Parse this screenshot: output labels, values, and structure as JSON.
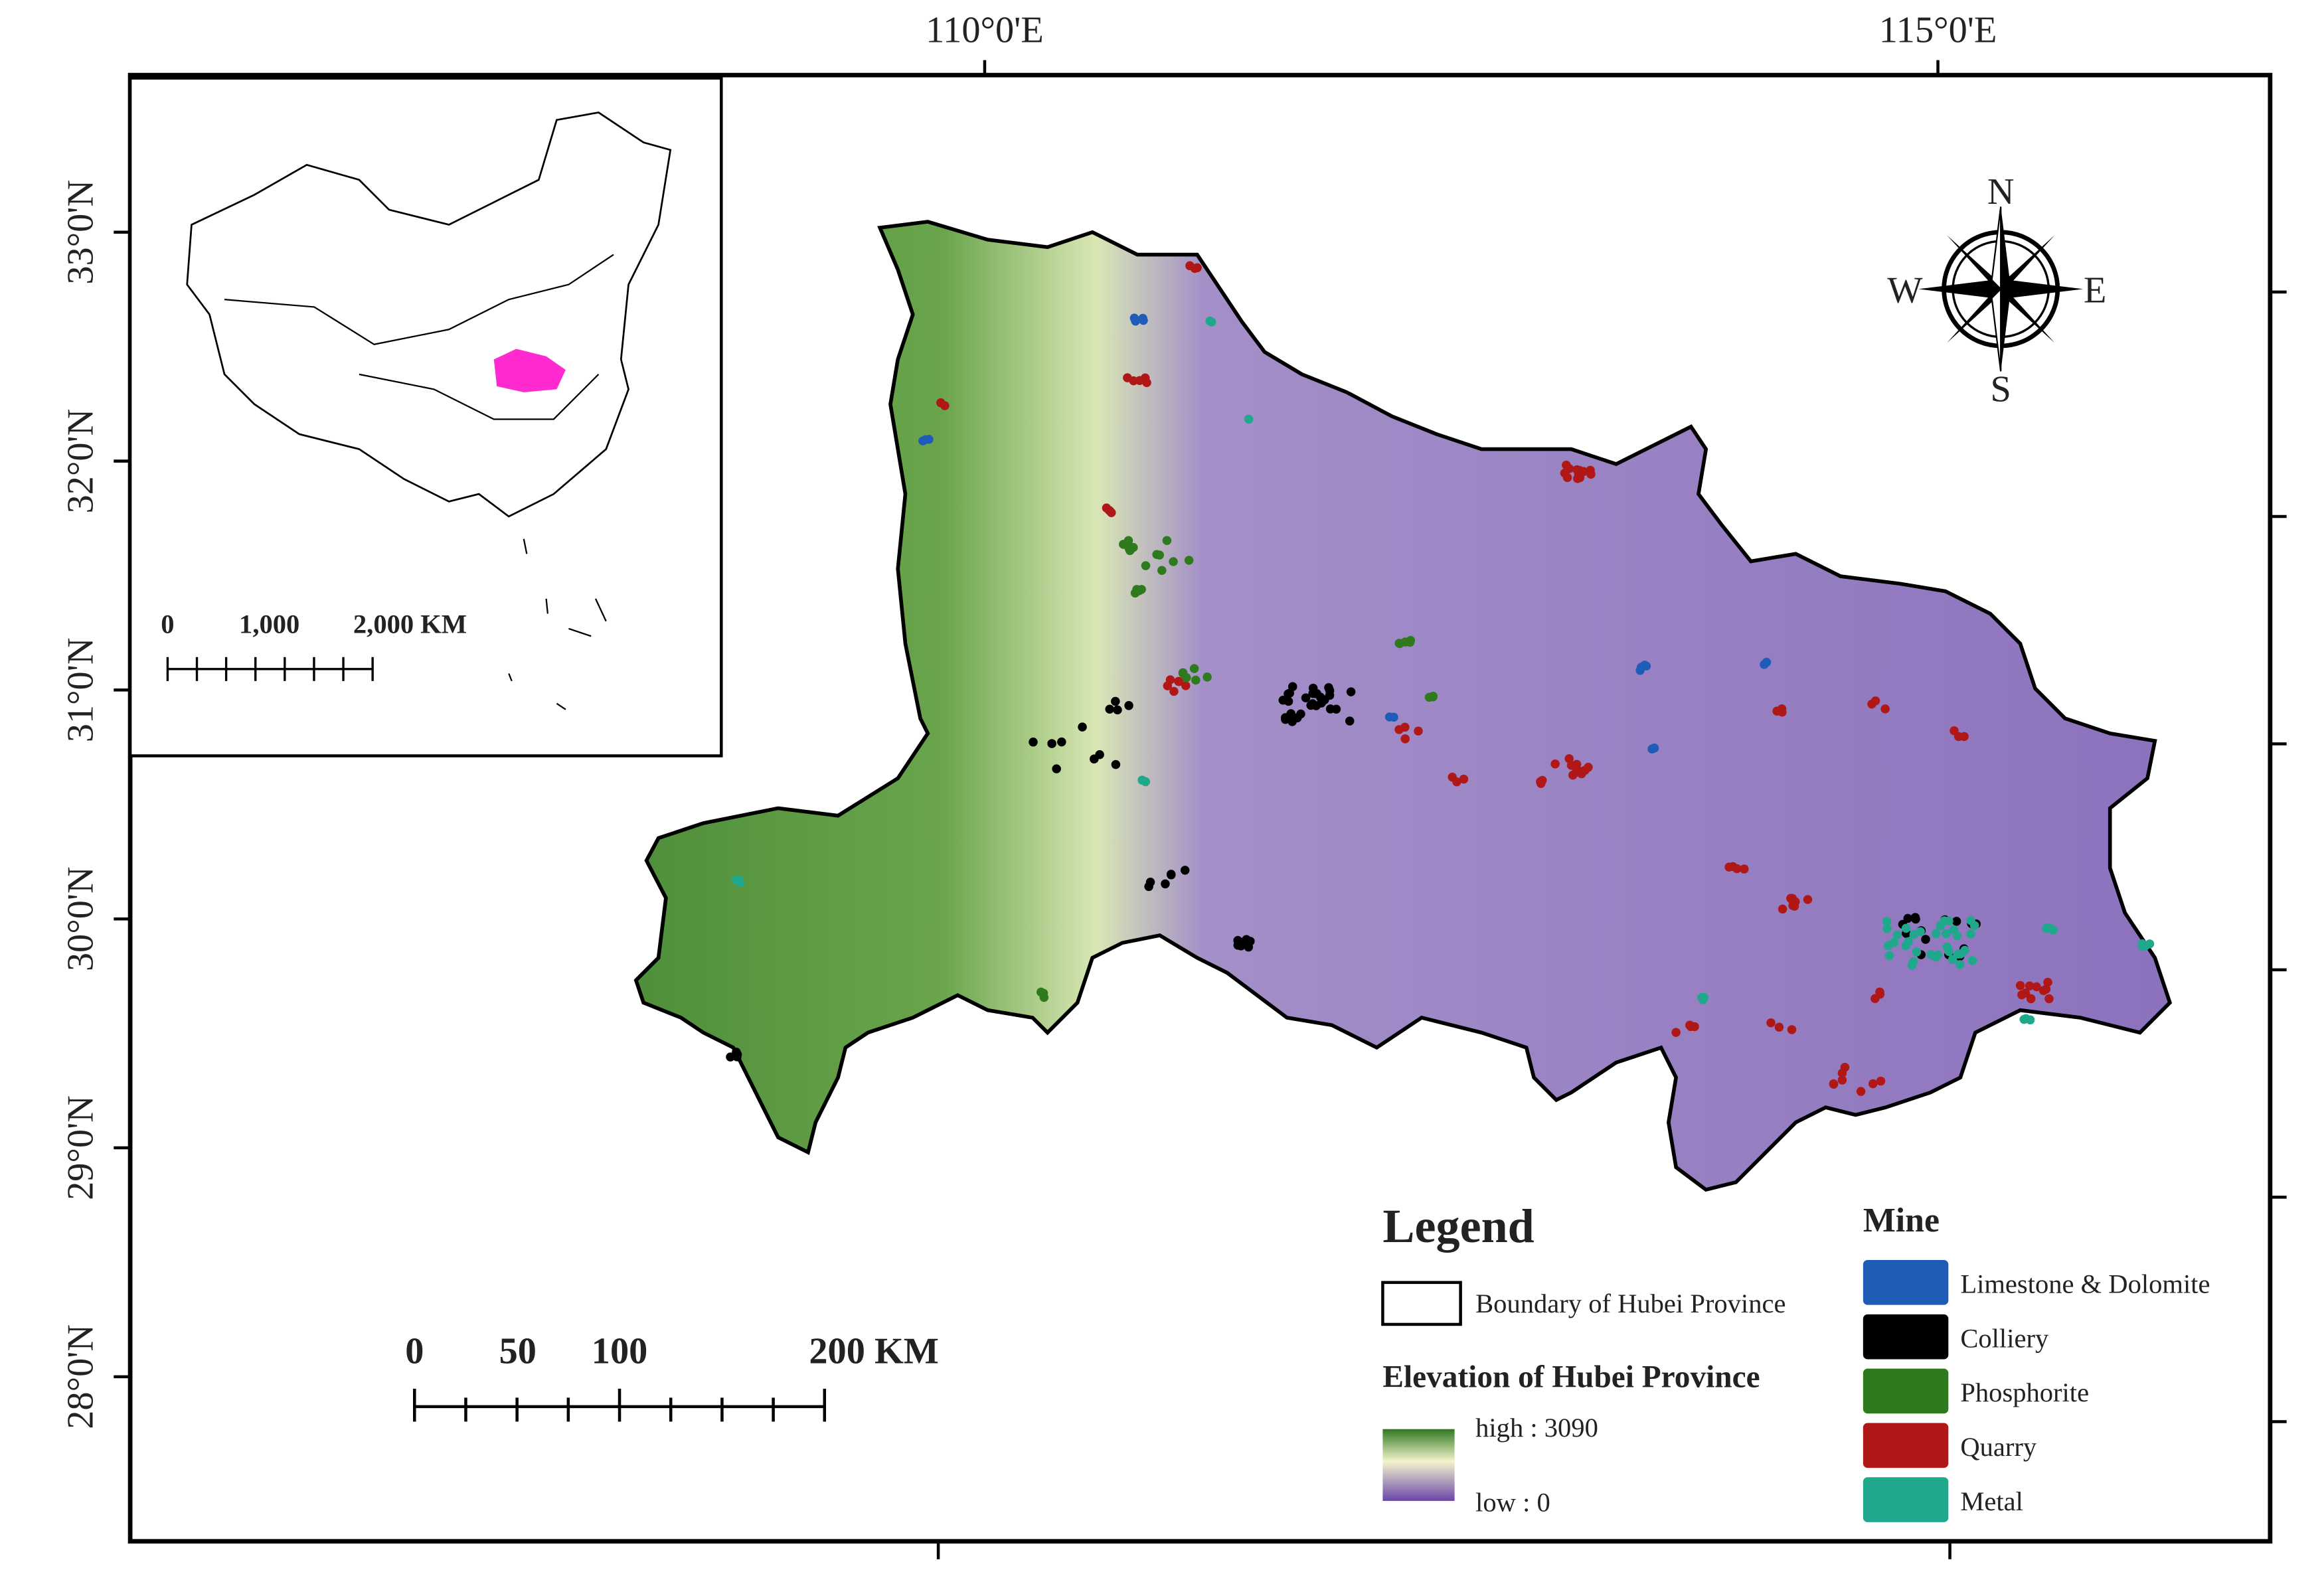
{
  "map": {
    "lon_labels": [
      "110°0'E",
      "115°0'E"
    ],
    "lat_labels": [
      "33°0'N",
      "32°0'N",
      "31°0'N",
      "30°0'N",
      "29°0'N",
      "28°0'N"
    ],
    "compass": {
      "n": "N",
      "s": "S",
      "w": "W",
      "e": "E"
    },
    "inset_scale": [
      "0",
      "1,000",
      "2,000 KM"
    ],
    "scale": [
      "0",
      "50",
      "100",
      "200 KM"
    ],
    "legend": {
      "title": "Legend",
      "boundary": "Boundary of Hubei Province",
      "elevation_title": "Elevation of Hubei Province",
      "high": "high : 3090",
      "low": "low : 0",
      "mine_title": "Mine",
      "mines": [
        {
          "name": "Limestone & Dolomite",
          "color": "#1f5cb8"
        },
        {
          "name": "Colliery",
          "color": "#000000"
        },
        {
          "name": "Phosphorite",
          "color": "#2e7a1c"
        },
        {
          "name": "Quarry",
          "color": "#b01818"
        },
        {
          "name": "Metal",
          "color": "#1fa88c"
        }
      ]
    }
  }
}
